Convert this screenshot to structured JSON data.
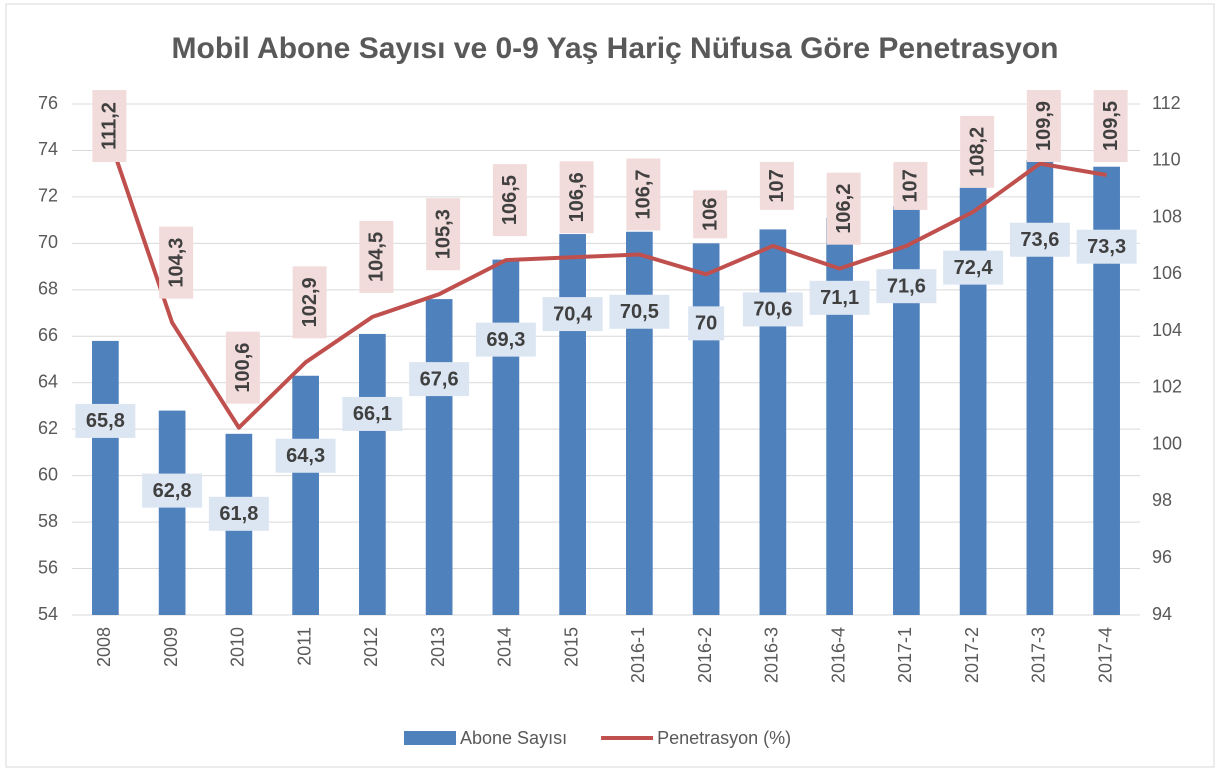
{
  "chart_data": {
    "type": "bar",
    "title": "Mobil Abone Sayısı ve 0-9 Yaş Hariç Nüfusa Göre Penetrasyon",
    "categories": [
      "2008",
      "2009",
      "2010",
      "2011",
      "2012",
      "2013",
      "2014",
      "2015",
      "2016-1",
      "2016-2",
      "2016-3",
      "2016-4",
      "2017-1",
      "2017-2",
      "2017-3",
      "2017-4"
    ],
    "series": [
      {
        "name": "Abone Sayısı",
        "type": "bar",
        "color": "#4f81bd",
        "values": [
          65.8,
          62.8,
          61.8,
          64.3,
          66.1,
          67.6,
          69.3,
          70.4,
          70.5,
          70,
          70.6,
          71.1,
          71.6,
          72.4,
          73.6,
          73.3
        ],
        "value_labels": [
          "65,8",
          "62,8",
          "61,8",
          "64,3",
          "66,1",
          "67,6",
          "69,3",
          "70,4",
          "70,5",
          "70",
          "70,6",
          "71,1",
          "71,6",
          "72,4",
          "73,6",
          "73,3"
        ]
      },
      {
        "name": "Penetrasyon (%)",
        "type": "line",
        "color": "#c0504d",
        "axis": "y2",
        "values": [
          111.2,
          104.3,
          100.6,
          102.9,
          104.5,
          105.3,
          106.5,
          106.6,
          106.7,
          106,
          107,
          106.2,
          107,
          108.2,
          109.9,
          109.5
        ],
        "value_labels": [
          "111,2",
          "104,3",
          "100,6",
          "102,9",
          "104,5",
          "105,3",
          "106,5",
          "106,6",
          "106,7",
          "106",
          "107",
          "106,2",
          "107",
          "108,2",
          "109,9",
          "109,5"
        ]
      }
    ],
    "ylim": [
      54,
      76
    ],
    "yticks": [
      54,
      56,
      58,
      60,
      62,
      64,
      66,
      68,
      70,
      72,
      74,
      76
    ],
    "y2lim": [
      94,
      112
    ],
    "y2ticks": [
      94,
      96,
      98,
      100,
      102,
      104,
      106,
      108,
      110,
      112
    ],
    "grid": true
  }
}
